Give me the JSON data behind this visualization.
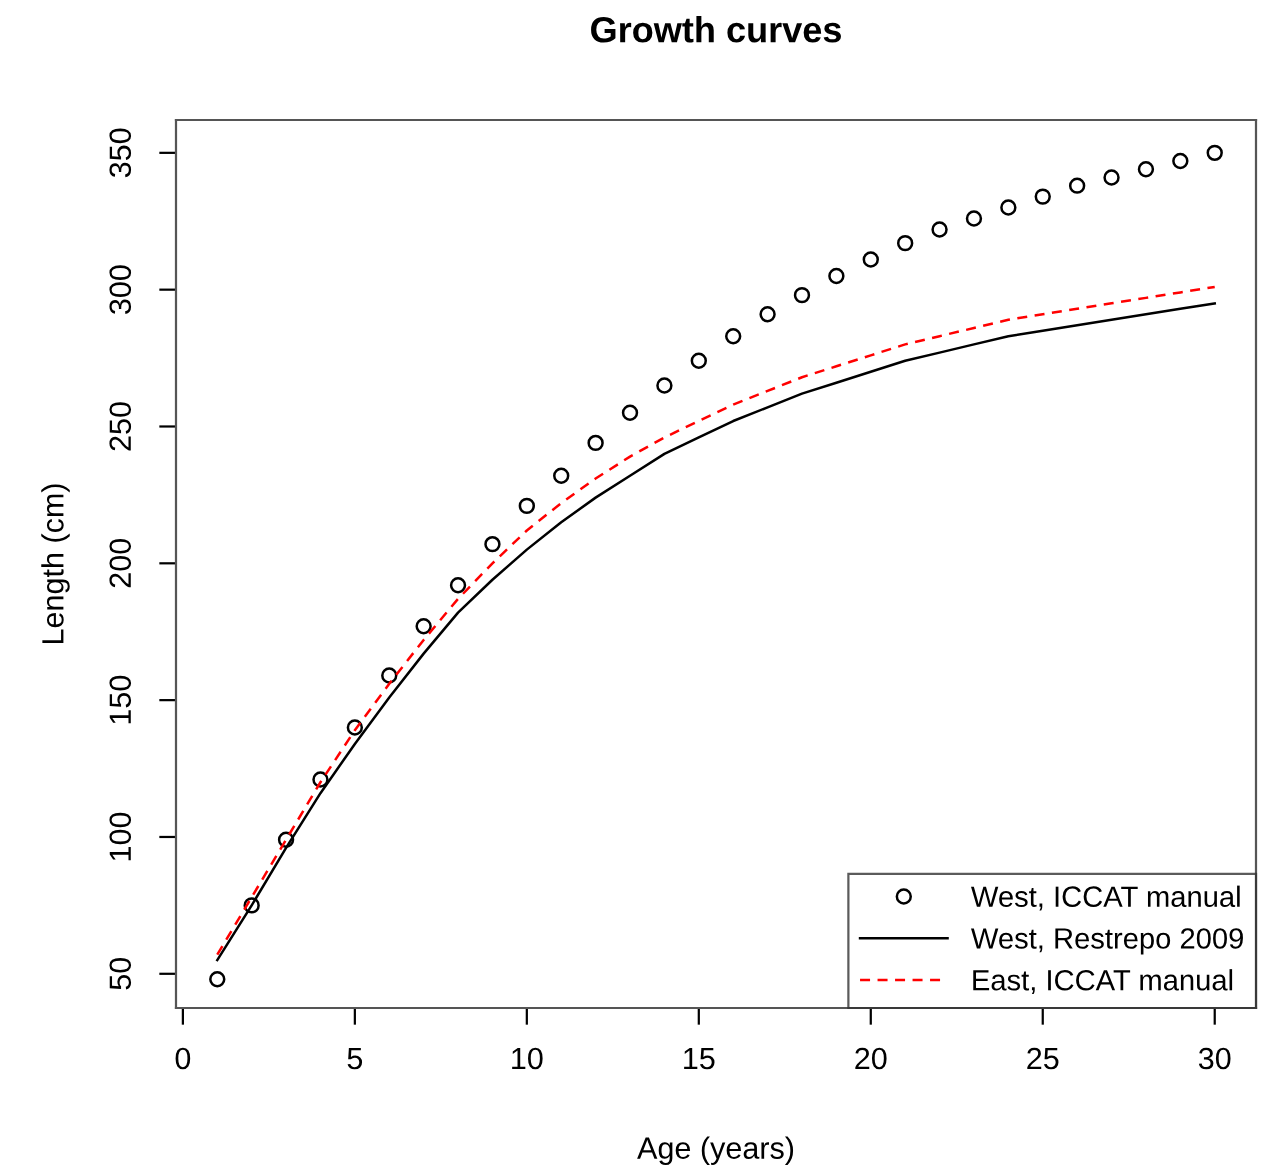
{
  "chart_data": {
    "type": "line",
    "title": "Growth curves",
    "xlabel": "Age (years)",
    "ylabel": "Length (cm)",
    "x": [
      1,
      2,
      3,
      4,
      5,
      6,
      7,
      8,
      9,
      10,
      11,
      12,
      13,
      14,
      15,
      16,
      17,
      18,
      19,
      20,
      21,
      22,
      23,
      24,
      25,
      26,
      27,
      28,
      29,
      30
    ],
    "series": [
      {
        "name": "West, ICCAT manual",
        "type": "scatter",
        "marker": "circle",
        "color": "#000000",
        "values": [
          48,
          75,
          99,
          121,
          140,
          159,
          177,
          192,
          207,
          221,
          232,
          244,
          255,
          265,
          274,
          283,
          291,
          298,
          305,
          311,
          317,
          322,
          326,
          330,
          334,
          338,
          341,
          344,
          347,
          350
        ]
      },
      {
        "name": "West, Restrepo 2009",
        "line_style": "solid",
        "color": "#000000",
        "values": [
          55,
          75,
          96,
          116,
          134,
          151,
          167,
          182,
          194,
          205,
          215,
          224,
          232,
          240,
          246,
          252,
          257,
          262,
          266,
          270,
          274,
          277,
          280,
          283,
          285,
          287,
          289,
          291,
          293,
          295
        ]
      },
      {
        "name": "East, ICCAT manual",
        "line_style": "dashed",
        "color": "#ff0000",
        "values": [
          57,
          78,
          99,
          120,
          139,
          156,
          172,
          187,
          200,
          212,
          222,
          231,
          239,
          246,
          252,
          258,
          263,
          268,
          272,
          276,
          280,
          283,
          286,
          289,
          291,
          293,
          295,
          297,
          299,
          301
        ]
      }
    ],
    "xlim": [
      -0.2,
      31.2
    ],
    "ylim": [
      37.5,
      362
    ],
    "xticks": [
      0,
      5,
      10,
      15,
      20,
      25,
      30
    ],
    "yticks": [
      50,
      100,
      150,
      200,
      250,
      300,
      350
    ],
    "grid": false,
    "legend": "bottom right"
  }
}
